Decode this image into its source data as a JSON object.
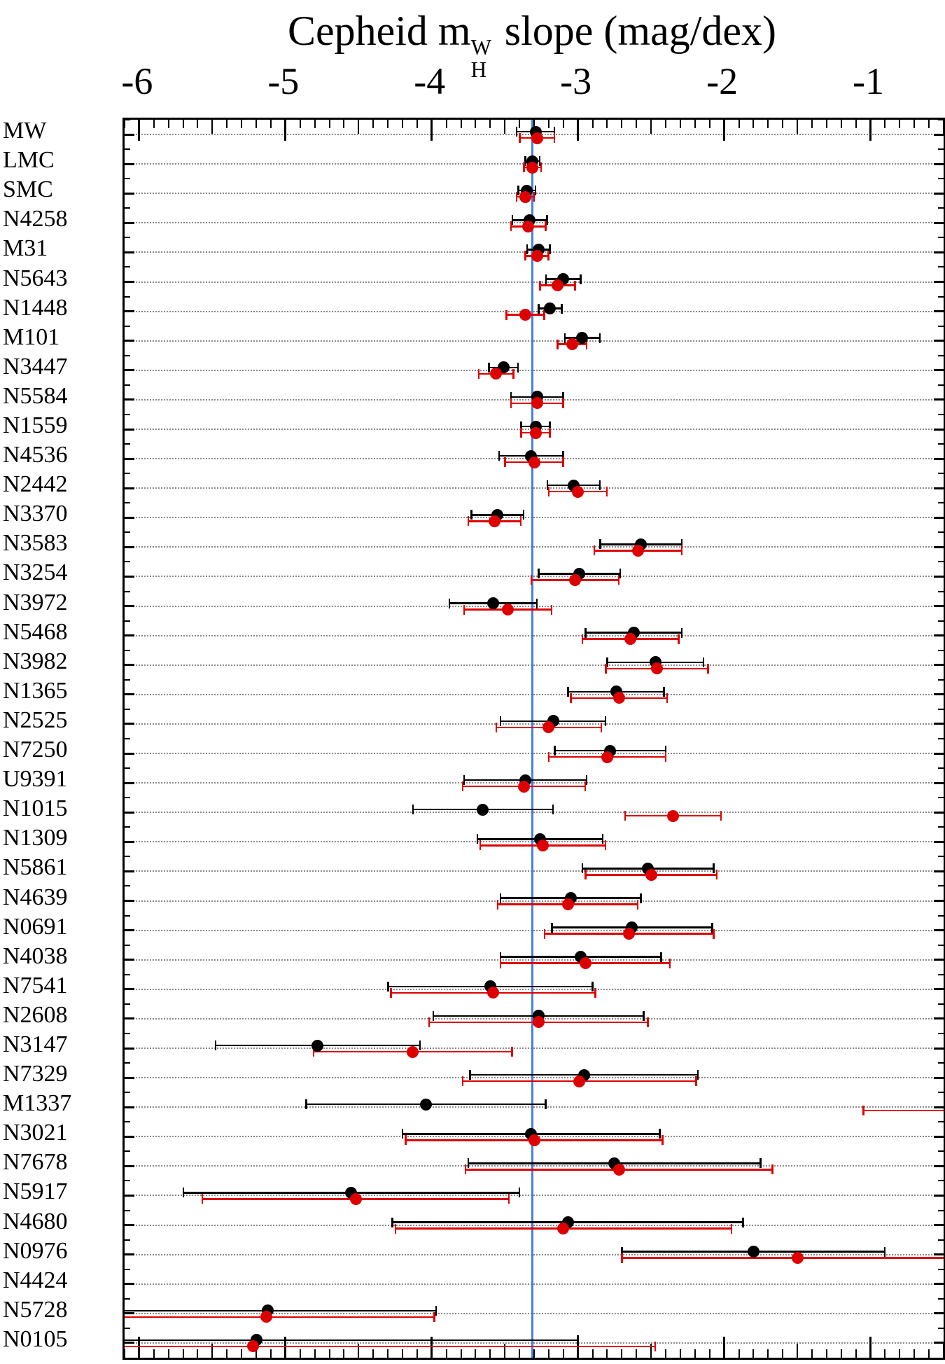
{
  "chart_data": {
    "type": "scatter",
    "title": {
      "prefix": "Cepheid m",
      "sub": "H",
      "sup": "W",
      "suffix": " slope (mag/dex)"
    },
    "x_axis": {
      "min": -6.1,
      "max": -0.5,
      "major_ticks": [
        -6,
        -5,
        -4,
        -3,
        -2,
        -1
      ],
      "tick_labels": [
        "-6",
        "-5",
        "-4",
        "-3",
        "-2",
        "-1"
      ],
      "minor_tick_step": 0.1,
      "medium_tick_step": 0.5
    },
    "reference_line": {
      "x": -3.31,
      "color": "#4a7de0"
    },
    "series": [
      {
        "name": "baseline",
        "color": "#000000"
      },
      {
        "name": "variant",
        "color": "#dd0000"
      }
    ],
    "grid": "dotted-horizontal",
    "legend_position": "none",
    "rows": [
      {
        "label": "MW",
        "black": {
          "v": -3.29,
          "e": 0.13
        },
        "red": {
          "v": -3.28,
          "e": 0.12
        }
      },
      {
        "label": "LMC",
        "black": {
          "v": -3.31,
          "e": 0.05
        },
        "red": {
          "v": -3.31,
          "e": 0.06
        }
      },
      {
        "label": "SMC",
        "black": {
          "v": -3.35,
          "e": 0.06
        },
        "red": {
          "v": -3.36,
          "e": 0.06
        }
      },
      {
        "label": "N4258",
        "black": {
          "v": -3.33,
          "e": 0.12
        },
        "red": {
          "v": -3.34,
          "e": 0.12
        }
      },
      {
        "label": "M31",
        "black": {
          "v": -3.27,
          "e": 0.08
        },
        "red": {
          "v": -3.28,
          "e": 0.08
        }
      },
      {
        "label": "N5643",
        "black": {
          "v": -3.1,
          "e": 0.12
        },
        "red": {
          "v": -3.14,
          "e": 0.12
        }
      },
      {
        "label": "N1448",
        "black": {
          "v": -3.19,
          "e": 0.08
        },
        "red": {
          "v": -3.36,
          "e": 0.13
        }
      },
      {
        "label": "M101",
        "black": {
          "v": -2.97,
          "e": 0.12
        },
        "red": {
          "v": -3.04,
          "e": 0.1
        }
      },
      {
        "label": "N3447",
        "black": {
          "v": -3.51,
          "e": 0.1
        },
        "red": {
          "v": -3.56,
          "e": 0.12
        }
      },
      {
        "label": "N5584",
        "black": {
          "v": -3.28,
          "e": 0.18
        },
        "red": {
          "v": -3.28,
          "e": 0.18
        }
      },
      {
        "label": "N1559",
        "black": {
          "v": -3.29,
          "e": 0.1
        },
        "red": {
          "v": -3.29,
          "e": 0.1
        }
      },
      {
        "label": "N4536",
        "black": {
          "v": -3.32,
          "e": 0.22
        },
        "red": {
          "v": -3.3,
          "e": 0.2
        }
      },
      {
        "label": "N2442",
        "black": {
          "v": -3.03,
          "e": 0.18
        },
        "red": {
          "v": -3.0,
          "e": 0.2
        }
      },
      {
        "label": "N3370",
        "black": {
          "v": -3.55,
          "e": 0.18
        },
        "red": {
          "v": -3.57,
          "e": 0.18
        }
      },
      {
        "label": "N3583",
        "black": {
          "v": -2.57,
          "e": 0.28
        },
        "red": {
          "v": -2.59,
          "e": 0.3
        }
      },
      {
        "label": "N3254",
        "black": {
          "v": -2.99,
          "e": 0.28
        },
        "red": {
          "v": -3.02,
          "e": 0.3
        }
      },
      {
        "label": "N3972",
        "black": {
          "v": -3.58,
          "e": 0.3
        },
        "red": {
          "v": -3.48,
          "e": 0.3
        }
      },
      {
        "label": "N5468",
        "black": {
          "v": -2.62,
          "e": 0.33
        },
        "red": {
          "v": -2.64,
          "e": 0.33
        }
      },
      {
        "label": "N3982",
        "black": {
          "v": -2.47,
          "e": 0.33
        },
        "red": {
          "v": -2.46,
          "e": 0.35
        }
      },
      {
        "label": "N1365",
        "black": {
          "v": -2.74,
          "e": 0.33
        },
        "red": {
          "v": -2.72,
          "e": 0.33
        }
      },
      {
        "label": "N2525",
        "black": {
          "v": -3.17,
          "e": 0.36
        },
        "red": {
          "v": -3.2,
          "e": 0.36
        }
      },
      {
        "label": "N7250",
        "black": {
          "v": -2.78,
          "e": 0.38
        },
        "red": {
          "v": -2.8,
          "e": 0.4
        }
      },
      {
        "label": "U9391",
        "black": {
          "v": -3.36,
          "e": 0.42
        },
        "red": {
          "v": -3.37,
          "e": 0.42
        }
      },
      {
        "label": "N1015",
        "black": {
          "v": -3.65,
          "e": 0.48
        },
        "red": {
          "v": -2.35,
          "e": 0.33
        }
      },
      {
        "label": "N1309",
        "black": {
          "v": -3.26,
          "e": 0.43
        },
        "red": {
          "v": -3.24,
          "e": 0.43
        }
      },
      {
        "label": "N5861",
        "black": {
          "v": -2.52,
          "e": 0.45
        },
        "red": {
          "v": -2.5,
          "e": 0.45
        }
      },
      {
        "label": "N4639",
        "black": {
          "v": -3.05,
          "e": 0.48
        },
        "red": {
          "v": -3.07,
          "e": 0.48
        }
      },
      {
        "label": "N0691",
        "black": {
          "v": -2.63,
          "e": 0.55
        },
        "red": {
          "v": -2.65,
          "e": 0.58
        }
      },
      {
        "label": "N4038",
        "black": {
          "v": -2.98,
          "e": 0.55
        },
        "red": {
          "v": -2.95,
          "e": 0.58
        }
      },
      {
        "label": "N7541",
        "black": {
          "v": -3.6,
          "e": 0.7
        },
        "red": {
          "v": -3.58,
          "e": 0.7
        }
      },
      {
        "label": "N2608",
        "black": {
          "v": -3.27,
          "e": 0.72
        },
        "red": {
          "v": -3.27,
          "e": 0.75
        }
      },
      {
        "label": "N3147",
        "black": {
          "v": -4.78,
          "e": 0.7
        },
        "red": {
          "v": -4.13,
          "e": 0.68
        }
      },
      {
        "label": "N7329",
        "black": {
          "v": -2.96,
          "e": 0.78
        },
        "red": {
          "v": -2.99,
          "e": 0.8
        }
      },
      {
        "label": "M1337",
        "black": {
          "v": -4.04,
          "e": 0.82
        },
        "red": {
          "v": -0.35,
          "e": 0.7
        }
      },
      {
        "label": "N3021",
        "black": {
          "v": -3.32,
          "e": 0.88
        },
        "red": {
          "v": -3.3,
          "e": 0.88
        }
      },
      {
        "label": "N7678",
        "black": {
          "v": -2.75,
          "e": 1.0
        },
        "red": {
          "v": -2.72,
          "e": 1.05
        }
      },
      {
        "label": "N5917",
        "black": {
          "v": -4.55,
          "e": 1.15
        },
        "red": {
          "v": -4.52,
          "e": 1.05
        }
      },
      {
        "label": "N4680",
        "black": {
          "v": -3.07,
          "e": 1.2
        },
        "red": {
          "v": -3.1,
          "e": 1.15
        }
      },
      {
        "label": "N0976",
        "black": {
          "v": -1.8,
          "e": 0.9
        },
        "red": {
          "v": -1.5,
          "e": 1.2
        }
      },
      {
        "label": "N4424",
        "black": {
          "v": null,
          "e": null
        },
        "red": {
          "v": null,
          "e": null
        }
      },
      {
        "label": "N5728",
        "black": {
          "v": -5.12,
          "e": 1.15
        },
        "red": {
          "v": -5.13,
          "e": 1.15
        }
      },
      {
        "label": "N0105",
        "black": {
          "v": -5.2,
          "e": 2.2
        },
        "red": {
          "v": -5.22,
          "e": 2.75
        }
      }
    ]
  }
}
